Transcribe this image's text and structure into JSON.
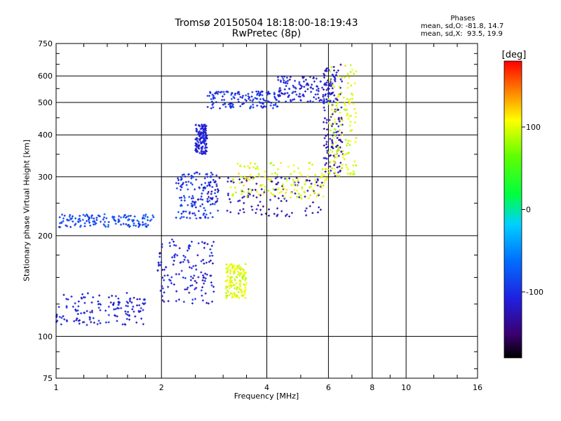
{
  "header": {
    "title": "Tromsø 20150504 18:18:00-18:19:43",
    "subtitle": "RwPretec (8p)"
  },
  "phase_stats": {
    "heading": "Phases",
    "line_o": "mean, sd,O: -81.8, 14.7",
    "line_x": "mean, sd,X:  93.5, 19.9"
  },
  "colorbar": {
    "unit": "[deg]",
    "ticks": [
      100,
      0,
      -100
    ],
    "range": [
      -180,
      180
    ]
  },
  "chart_data": {
    "type": "scatter",
    "xlabel": "Frequency [MHz]",
    "ylabel": "Stationary phase Virtual Height [km]",
    "xscale": "log",
    "yscale": "log",
    "xlim": [
      1,
      16
    ],
    "ylim": [
      75,
      750
    ],
    "x_ticks": [
      1,
      2,
      4,
      6,
      8,
      10,
      16
    ],
    "y_ticks": [
      75,
      100,
      200,
      300,
      400,
      500,
      600,
      750
    ],
    "grid": true,
    "color_by": "phase (deg)",
    "groups": [
      {
        "x": [
          1.0,
          1.8
        ],
        "y": [
          108,
          135
        ],
        "phase": -110
      },
      {
        "x": [
          1.02,
          1.9
        ],
        "y": [
          212,
          232
        ],
        "phase": -85
      },
      {
        "x": [
          1.95,
          2.85
        ],
        "y": [
          125,
          195
        ],
        "phase": -110
      },
      {
        "x": [
          2.2,
          2.9
        ],
        "y": [
          225,
          310
        ],
        "phase": -95
      },
      {
        "x": [
          2.5,
          2.7
        ],
        "y": [
          350,
          430
        ],
        "phase": -110
      },
      {
        "x": [
          2.7,
          4.3
        ],
        "y": [
          480,
          540
        ],
        "phase": -100
      },
      {
        "x": [
          2.5,
          5.8
        ],
        "y": [
          228,
          300
        ],
        "phase": -125
      },
      {
        "x": [
          5.8,
          6.6
        ],
        "y": [
          300,
          650
        ],
        "phase": -125
      },
      {
        "x": [
          3.1,
          6.0
        ],
        "y": [
          258,
          330
        ],
        "phase": 100
      },
      {
        "x": [
          6.0,
          7.2
        ],
        "y": [
          300,
          650
        ],
        "phase": 100
      },
      {
        "x": [
          3.05,
          3.5
        ],
        "y": [
          130,
          165
        ],
        "phase": 100
      },
      {
        "x": [
          4.3,
          6.3
        ],
        "y": [
          500,
          600
        ],
        "phase": -110
      }
    ]
  }
}
